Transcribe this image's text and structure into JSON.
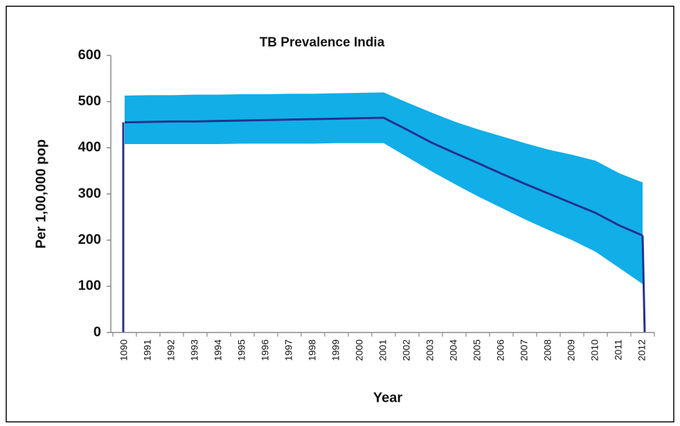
{
  "chart_data": {
    "type": "band-line",
    "title": "TB Prevalence India",
    "y_label": "Per 1,00,000 pop",
    "x_label": "Year",
    "categories": [
      "1090",
      "1991",
      "1992",
      "1993",
      "1994",
      "1995",
      "1996",
      "1997",
      "1998",
      "1999",
      "2000",
      "2001",
      "2002",
      "2003",
      "2004",
      "2005",
      "2006",
      "2007",
      "2008",
      "2009",
      "2010",
      "2011",
      "2012"
    ],
    "band": {
      "color": "#12aee8",
      "upper": [
        513,
        514,
        514,
        515,
        515,
        516,
        516,
        517,
        517,
        518,
        519,
        520,
        498,
        477,
        457,
        440,
        425,
        410,
        396,
        385,
        372,
        345,
        325
      ],
      "lower": [
        408,
        408,
        408,
        408,
        408,
        409,
        409,
        409,
        409,
        410,
        410,
        410,
        380,
        350,
        322,
        295,
        270,
        245,
        222,
        200,
        175,
        140,
        105
      ]
    },
    "line": {
      "color": "#23308f",
      "values": [
        455,
        456,
        457,
        457,
        458,
        459,
        460,
        461,
        462,
        463,
        464,
        465,
        439,
        412,
        389,
        367,
        344,
        322,
        301,
        280,
        259,
        232,
        210
      ]
    },
    "ylim": [
      0,
      600
    ],
    "yticks": [
      0,
      100,
      200,
      300,
      400,
      500,
      600
    ]
  }
}
